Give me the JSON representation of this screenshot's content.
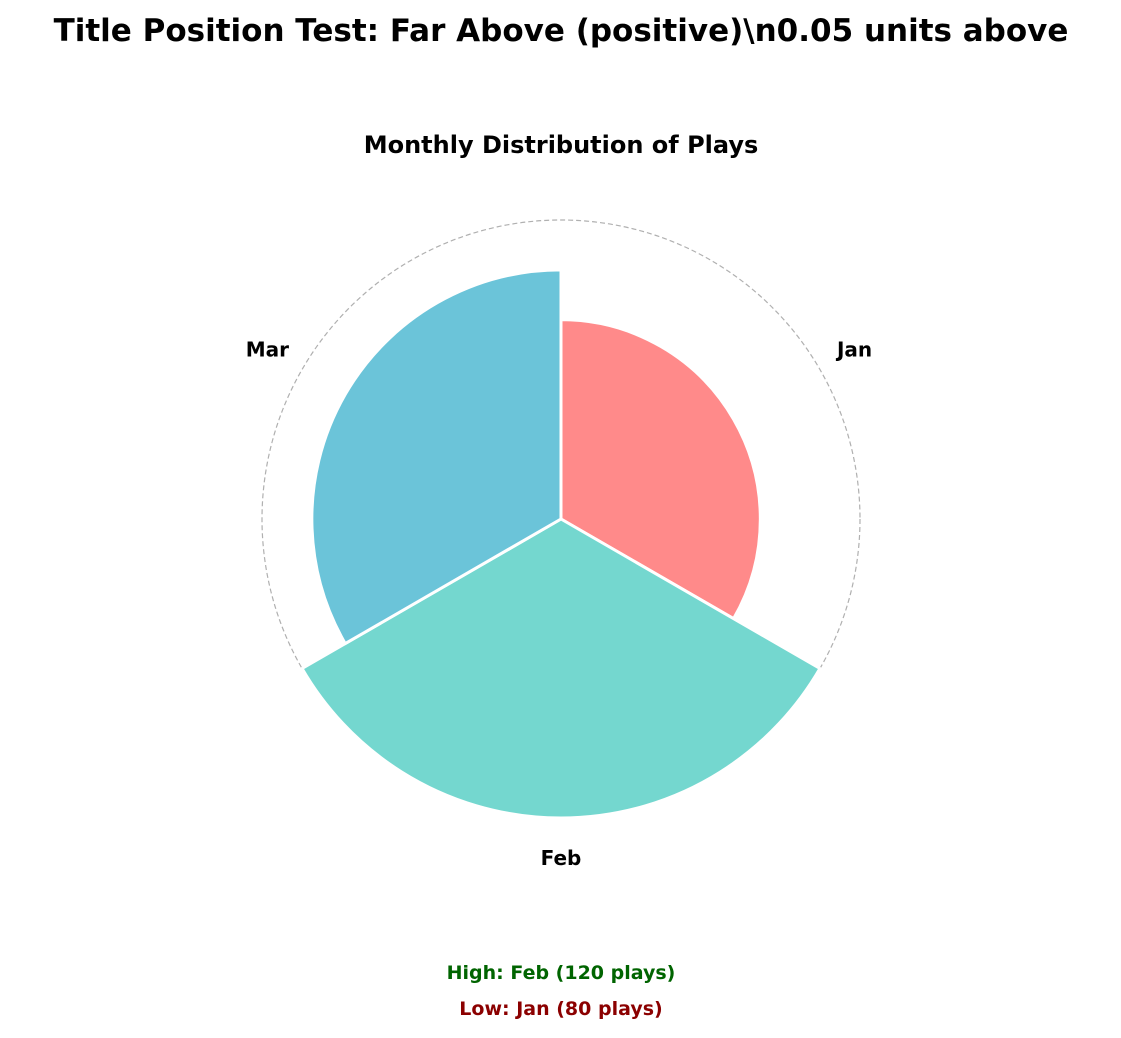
{
  "figure": {
    "suptitle": "Title Position Test: Far Above (positive)\\n0.05 units above"
  },
  "chart_data": {
    "type": "polar-bar",
    "title": "Monthly Distribution of Plays",
    "categories": [
      "Jan",
      "Feb",
      "Mar"
    ],
    "values": [
      80,
      120,
      100
    ],
    "colors": [
      "#FF8A8A",
      "#74D7CF",
      "#6BC4D9"
    ],
    "rmax": 120,
    "grid": "outer ring only, dashed",
    "direction": "clockwise from top",
    "annotations": {
      "high": "High: Feb (120 plays)",
      "low": "Low: Jan (80 plays)",
      "high_color": "#006400",
      "low_color": "#8B0000"
    }
  }
}
